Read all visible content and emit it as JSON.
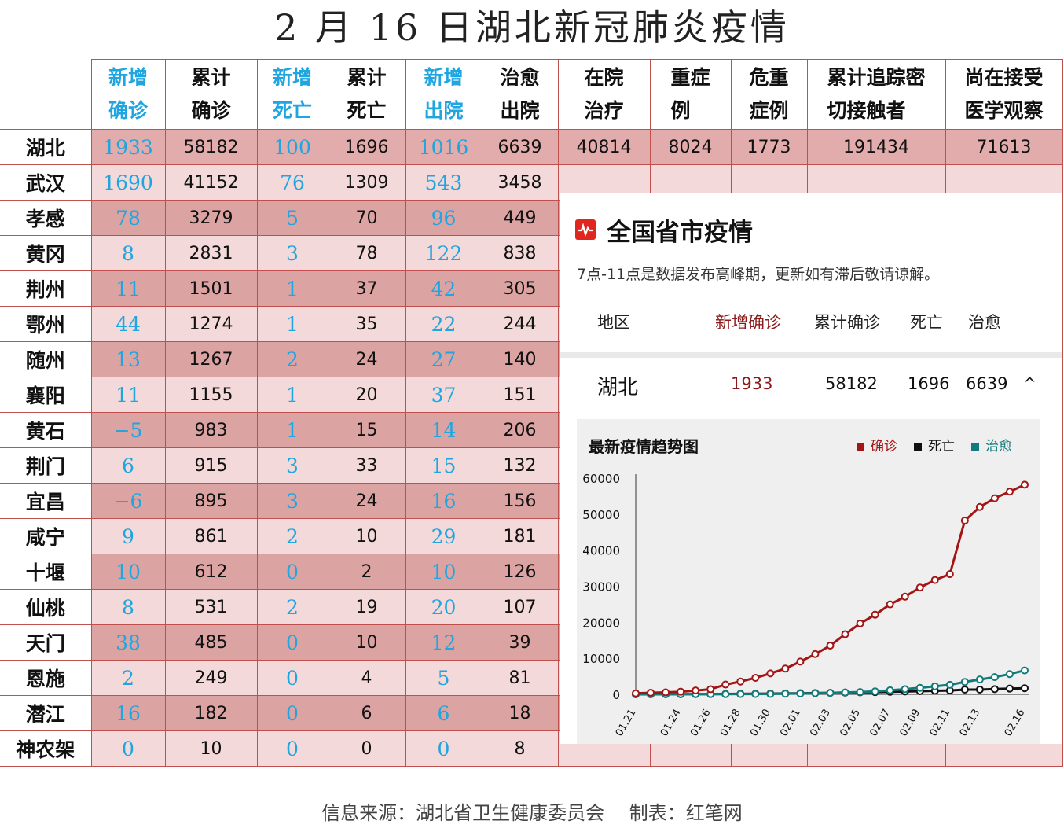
{
  "title": "2 月 16 日湖北新冠肺炎疫情",
  "footer": "信息来源：湖北省卫生健康委员会　 制表：红笔网",
  "table": {
    "headers": [
      [
        "新增",
        "确诊"
      ],
      [
        "累计",
        "确诊"
      ],
      [
        "新增",
        "死亡"
      ],
      [
        "累计",
        "死亡"
      ],
      [
        "新增",
        "出院"
      ],
      [
        "治愈",
        "出院"
      ],
      [
        "在院",
        "治疗"
      ],
      [
        "重症",
        "例"
      ],
      [
        "危重",
        "症例"
      ],
      [
        "累计追踪密",
        "切接触者"
      ],
      [
        "尚在接受",
        "医学观察"
      ]
    ],
    "hubei": [
      "湖北",
      "1933",
      "58182",
      "100",
      "1696",
      "1016",
      "6639",
      "40814",
      "8024",
      "1773",
      "191434",
      "71613"
    ],
    "cities": [
      [
        "武汉",
        "1690",
        "41152",
        "76",
        "1309",
        "543",
        "3458"
      ],
      [
        "孝感",
        "78",
        "3279",
        "5",
        "70",
        "96",
        "449"
      ],
      [
        "黄冈",
        "8",
        "2831",
        "3",
        "78",
        "122",
        "838"
      ],
      [
        "荆州",
        "11",
        "1501",
        "1",
        "37",
        "42",
        "305"
      ],
      [
        "鄂州",
        "44",
        "1274",
        "1",
        "35",
        "22",
        "244"
      ],
      [
        "随州",
        "13",
        "1267",
        "2",
        "24",
        "27",
        "140"
      ],
      [
        "襄阳",
        "11",
        "1155",
        "1",
        "20",
        "37",
        "151"
      ],
      [
        "黄石",
        "−5",
        "983",
        "1",
        "15",
        "14",
        "206"
      ],
      [
        "荆门",
        "6",
        "915",
        "3",
        "33",
        "15",
        "132"
      ],
      [
        "宜昌",
        "−6",
        "895",
        "3",
        "24",
        "16",
        "156"
      ],
      [
        "咸宁",
        "9",
        "861",
        "2",
        "10",
        "29",
        "181"
      ],
      [
        "十堰",
        "10",
        "612",
        "0",
        "2",
        "10",
        "126"
      ],
      [
        "仙桃",
        "8",
        "531",
        "2",
        "19",
        "20",
        "107"
      ],
      [
        "天门",
        "38",
        "485",
        "0",
        "10",
        "12",
        "39"
      ],
      [
        "恩施",
        "2",
        "249",
        "0",
        "4",
        "5",
        "81"
      ],
      [
        "潜江",
        "16",
        "182",
        "0",
        "6",
        "6",
        "18"
      ],
      [
        "神农架",
        "0",
        "10",
        "0",
        "0",
        "0",
        "8"
      ]
    ]
  },
  "panel": {
    "title": "全国省市疫情",
    "note": "7点-11点是数据发布高峰期，更新如有滞后敬请谅解。",
    "columns": {
      "region": "地区",
      "new": "新增确诊",
      "total": "累计确诊",
      "deaths": "死亡",
      "cured": "治愈"
    },
    "row": {
      "region": "湖北",
      "new": "1933",
      "total": "58182",
      "deaths": "1696",
      "cured": "6639",
      "toggle": "^"
    },
    "accent": "#8b1a1a"
  },
  "chart_data": {
    "type": "line",
    "title": "最新疫情趋势图",
    "x": [
      "01.21",
      "01.22",
      "01.23",
      "01.24",
      "01.25",
      "01.26",
      "01.27",
      "01.28",
      "01.29",
      "01.30",
      "01.31",
      "02.01",
      "02.02",
      "02.03",
      "02.04",
      "02.05",
      "02.06",
      "02.07",
      "02.08",
      "02.09",
      "02.10",
      "02.11",
      "02.12",
      "02.13",
      "02.14",
      "02.15",
      "02.16"
    ],
    "x_tick_labels": [
      "01.21",
      "01.24",
      "01.26",
      "01.28",
      "01.30",
      "02.01",
      "02.03",
      "02.05",
      "02.07",
      "02.09",
      "02.11",
      "02.13",
      "02.16"
    ],
    "ylim": [
      0,
      60000
    ],
    "yticks": [
      0,
      10000,
      20000,
      30000,
      40000,
      50000,
      60000
    ],
    "legend_position": "top-right",
    "series": [
      {
        "name": "确诊",
        "color": "#a31515",
        "values": [
          270,
          444,
          549,
          729,
          1052,
          1423,
          2714,
          3554,
          4586,
          5806,
          7153,
          9074,
          11177,
          13522,
          16678,
          19665,
          22112,
          24953,
          27100,
          29631,
          31728,
          33366,
          48206,
          51986,
          54406,
          56249,
          58182
        ]
      },
      {
        "name": "死亡",
        "color": "#111111",
        "values": [
          6,
          17,
          24,
          39,
          52,
          76,
          100,
          125,
          162,
          204,
          249,
          294,
          350,
          414,
          479,
          549,
          618,
          699,
          780,
          871,
          974,
          1068,
          1310,
          1318,
          1457,
          1596,
          1696
        ]
      },
      {
        "name": "治愈",
        "color": "#117a7a",
        "values": [
          25,
          28,
          31,
          32,
          42,
          44,
          47,
          80,
          90,
          116,
          166,
          215,
          295,
          396,
          520,
          633,
          817,
          1115,
          1439,
          1795,
          2222,
          2639,
          3441,
          4131,
          4774,
          5623,
          6639
        ]
      }
    ]
  }
}
